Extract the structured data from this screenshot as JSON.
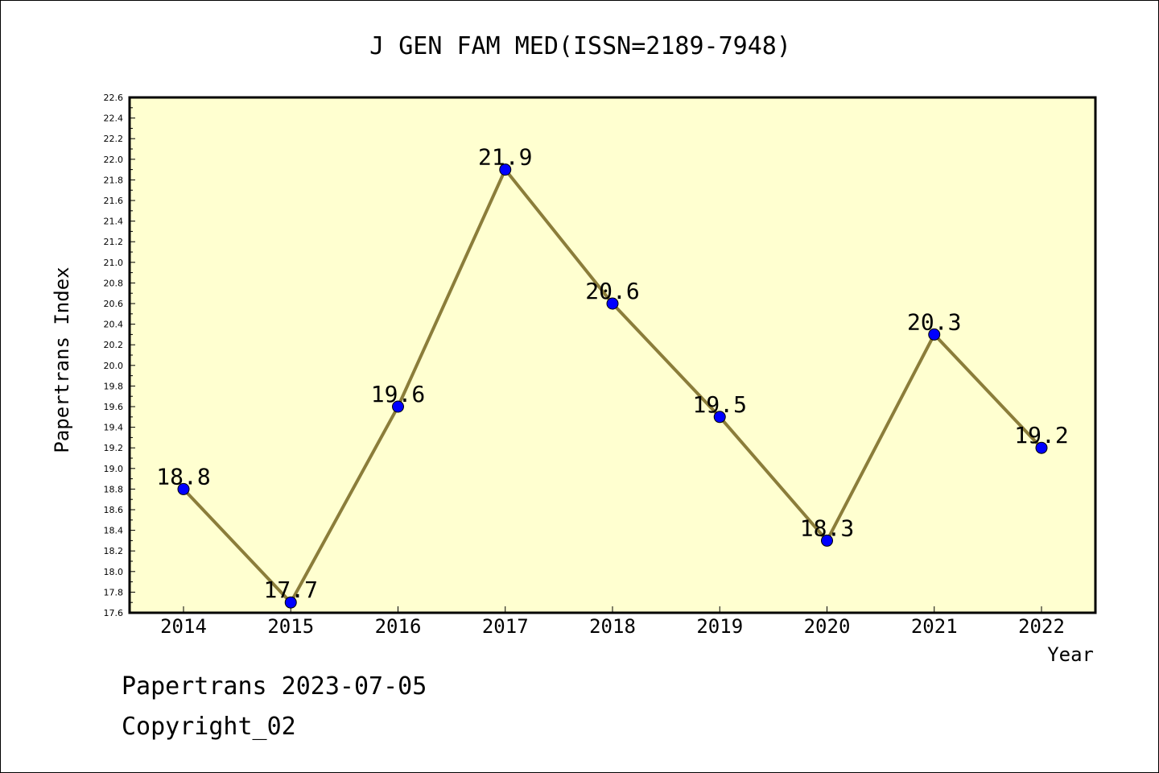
{
  "footer": {
    "stamp": "Papertrans 2023-07-05",
    "copyright": "Copyright_02"
  },
  "colors": {
    "plot_background": "#ffffd0",
    "line": "#8b7d3a",
    "marker": "#0000ff"
  },
  "chart_data": {
    "type": "line",
    "title": "J GEN FAM MED(ISSN=2189-7948)",
    "xlabel": "Year",
    "ylabel": "Papertrans Index",
    "categories": [
      "2014",
      "2015",
      "2016",
      "2017",
      "2018",
      "2019",
      "2020",
      "2021",
      "2022"
    ],
    "series": [
      {
        "values": [
          18.8,
          17.7,
          19.6,
          21.9,
          20.6,
          19.5,
          18.3,
          20.3,
          19.2
        ],
        "value_labels": [
          "18.8",
          "17.7",
          "19.6",
          "21.9",
          "20.6",
          "19.5",
          "18.3",
          "20.3",
          "19.2"
        ]
      }
    ],
    "ylim": [
      17.6,
      22.6
    ],
    "yticks": [
      "17.6",
      "17.8",
      "18.0",
      "18.2",
      "18.4",
      "18.6",
      "18.8",
      "19.0",
      "19.2",
      "19.4",
      "19.6",
      "19.8",
      "20.0",
      "20.2",
      "20.4",
      "20.6",
      "20.8",
      "21.0",
      "21.2",
      "21.4",
      "21.6",
      "21.8",
      "22.0",
      "22.2",
      "22.4",
      "22.6"
    ],
    "grid": false,
    "legend": "none"
  }
}
